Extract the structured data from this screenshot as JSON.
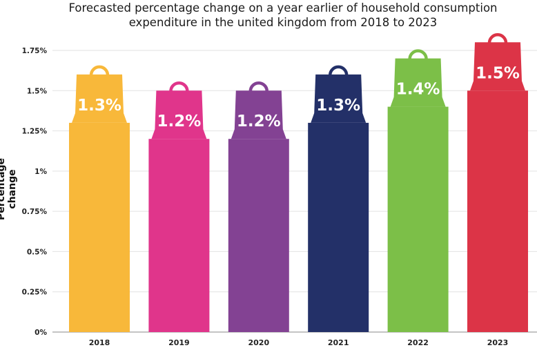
{
  "title_line1": "Forecasted percentage change on a year earlier of household consumption",
  "title_line2": "expenditure in the united kingdom from 2018 to 2023",
  "chart_data": {
    "type": "bar",
    "title": "Forecasted percentage change on a year earlier of household consumption expenditure in the united kingdom from 2018 to 2023",
    "xlabel": "",
    "ylabel": "Percentage change",
    "ylim": [
      0,
      1.75
    ],
    "y_tick_labels": [
      "0%",
      "0.25%",
      "0.5%",
      "0.75%",
      "1%",
      "1.25%",
      "1.5%",
      "1.75%"
    ],
    "grid": true,
    "categories": [
      "2018",
      "2019",
      "2020",
      "2021",
      "2022",
      "2023"
    ],
    "values": [
      1.3,
      1.2,
      1.2,
      1.3,
      1.4,
      1.5
    ],
    "data_labels": [
      "1.3%",
      "1.2%",
      "1.2%",
      "1.3%",
      "1.4%",
      "1.5%"
    ],
    "colors": [
      "#f8b83a",
      "#e0358b",
      "#834293",
      "#233068",
      "#7cbf48",
      "#dc3447"
    ],
    "label_marker": "shopping-bag-icon"
  }
}
